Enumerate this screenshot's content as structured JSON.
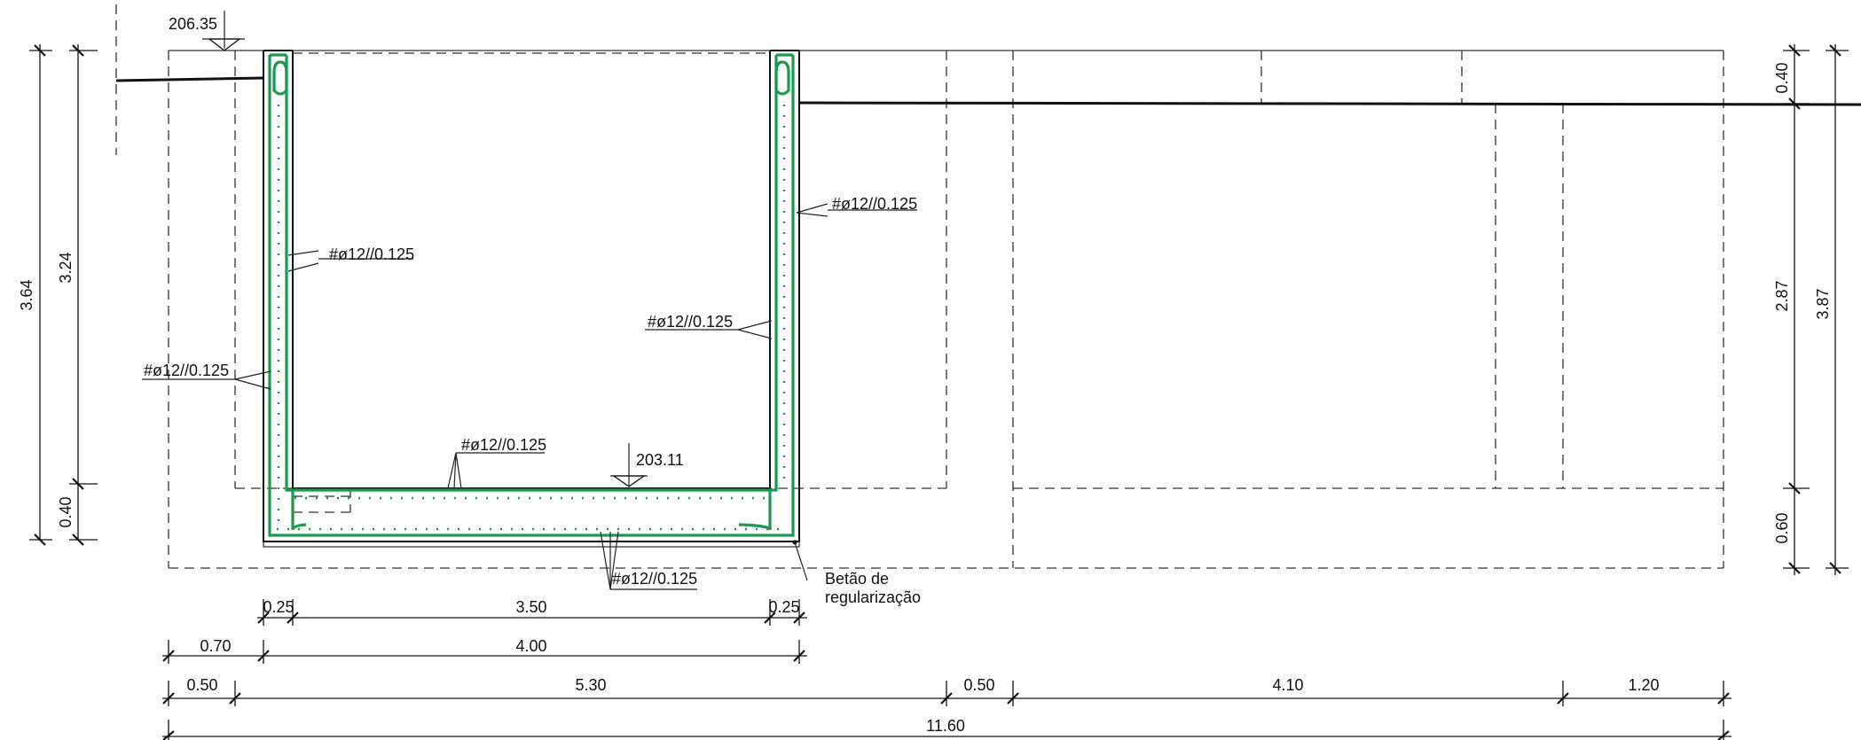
{
  "levels": {
    "top": "206.35",
    "bottom": "203.11"
  },
  "rebar_labels": {
    "left_outer": "#ø12//0.125",
    "left_inner": "#ø12//0.125",
    "right_outer": "#ø12//0.125",
    "right_inner": "#ø12//0.125",
    "slab_top": "#ø12//0.125",
    "slab_bottom": "#ø12//0.125"
  },
  "note": {
    "line1": "Betão de",
    "line2": "regularização"
  },
  "dims_vertical": {
    "left_total": "3.64",
    "left_wall": "3.24",
    "left_slab": "0.40",
    "right_top": "0.40",
    "right_mid": "2.87",
    "right_total": "3.87",
    "right_bottom": "0.60"
  },
  "dims_horizontal": {
    "row1": [
      "0.25",
      "3.50",
      "0.25"
    ],
    "row2": [
      "0.70",
      "4.00"
    ],
    "row3": [
      "0.50",
      "5.30",
      "0.50",
      "4.10",
      "1.20"
    ],
    "total": "11.60"
  },
  "colors": {
    "rebar": "#1a9950",
    "line": "#111111"
  }
}
